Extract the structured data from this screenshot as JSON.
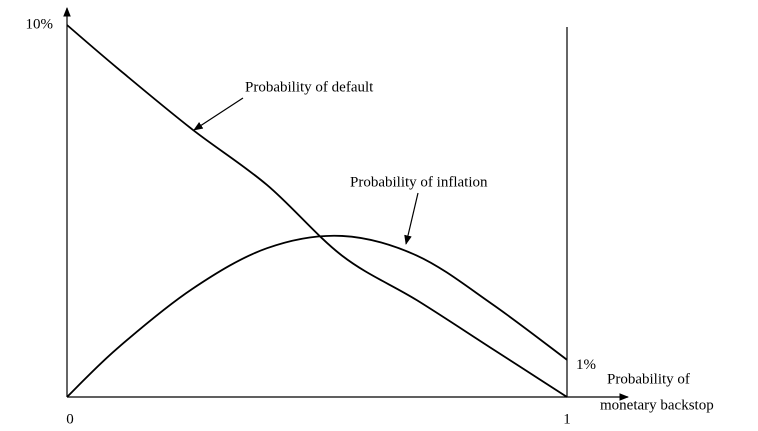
{
  "chart_data": {
    "type": "line",
    "x": [
      0,
      0.1,
      0.25,
      0.4,
      0.55,
      0.7,
      0.85,
      1
    ],
    "series": [
      {
        "name": "Probability of default",
        "color": "#000000",
        "values": [
          10,
          8.85,
          7.2,
          5.7,
          3.8,
          2.6,
          1.3,
          0
        ]
      },
      {
        "name": "Probability of inflation",
        "color": "#000000",
        "values": [
          0,
          1.3,
          2.9,
          4.0,
          4.33,
          3.8,
          2.5,
          1
        ]
      }
    ],
    "xlim": [
      0,
      1
    ],
    "xticks": [
      0,
      1
    ],
    "ylim": [
      0,
      10
    ],
    "yticks": [
      {
        "value": 10,
        "label": "10%"
      }
    ],
    "y2lim": [
      0,
      10
    ],
    "y2ticks": [
      {
        "value": 1,
        "label": "1%"
      }
    ],
    "xlabel": [
      "Probability of",
      "monetary backstop"
    ],
    "grid": false
  }
}
